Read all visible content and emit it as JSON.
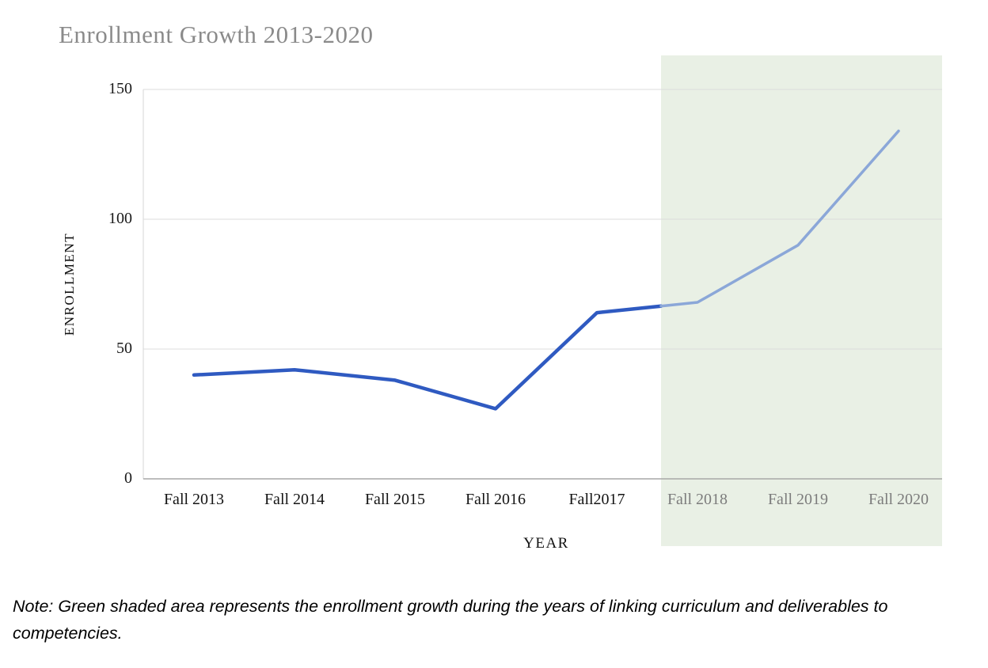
{
  "chart_data": {
    "type": "line",
    "title": "Enrollment Growth 2013-2020",
    "xlabel": "YEAR",
    "ylabel": "ENROLLMENT",
    "categories": [
      "Fall 2013",
      "Fall 2014",
      "Fall 2015",
      "Fall 2016",
      "Fall2017",
      "Fall 2018",
      "Fall 2019",
      "Fall 2020"
    ],
    "values": [
      40,
      42,
      38,
      27,
      64,
      68,
      90,
      134
    ],
    "ylim": [
      0,
      150
    ],
    "yticks": [
      0,
      50,
      100,
      150
    ],
    "grid": true,
    "legend": "none",
    "highlight_region": {
      "from_category": "Fall 2018",
      "to_category": "Fall 2020",
      "color": "#e9f0e5",
      "meaning": "years of linking curriculum and deliverables to competencies"
    },
    "line_colors": {
      "normal": "#2f5ac1",
      "highlighted": "#8ba7d8"
    },
    "grid_color": "#dcdcdc",
    "axis_color": "#a7a7a7"
  },
  "note": {
    "text": "Note: Green shaded area represents the enrollment growth during the years of linking curriculum and deliverables to competencies."
  }
}
